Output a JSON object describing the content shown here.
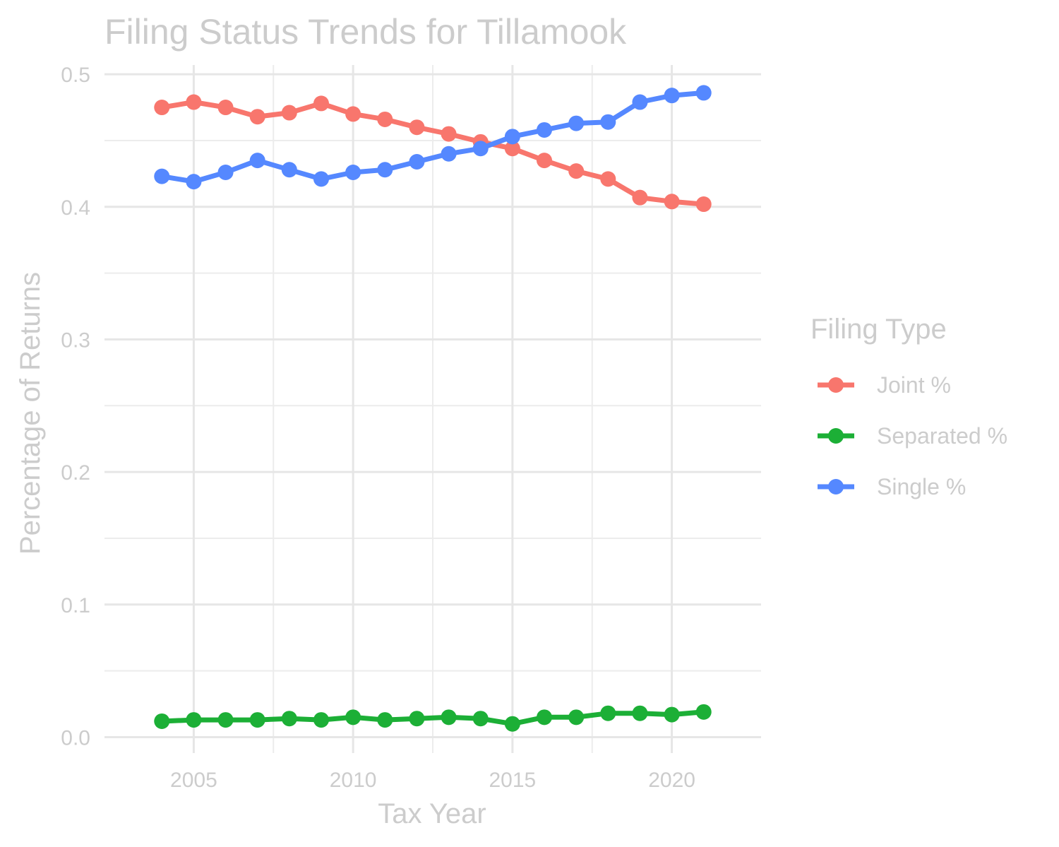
{
  "chart_data": {
    "type": "line",
    "title": "Filing Status Trends for Tillamook",
    "xlabel": "Tax Year",
    "ylabel": "Percentage of Returns",
    "x": [
      2004,
      2005,
      2006,
      2007,
      2008,
      2009,
      2010,
      2011,
      2012,
      2013,
      2014,
      2015,
      2016,
      2017,
      2018,
      2019,
      2020,
      2021
    ],
    "xlim": [
      2002.2,
      2022.8
    ],
    "ylim": [
      -0.012,
      0.507
    ],
    "x_ticks": [
      2005,
      2010,
      2015,
      2020
    ],
    "y_ticks": [
      0.0,
      0.1,
      0.2,
      0.3,
      0.4,
      0.5
    ],
    "x_tick_labels": [
      "2005",
      "2010",
      "2015",
      "2020"
    ],
    "y_tick_labels": [
      "0.0",
      "0.1",
      "0.2",
      "0.3",
      "0.4",
      "0.5"
    ],
    "grid": true,
    "legend": {
      "title": "Filing Type",
      "position": "right"
    },
    "series": [
      {
        "name": "Joint %",
        "color": "#F8766D",
        "values": [
          0.475,
          0.479,
          0.475,
          0.468,
          0.471,
          0.478,
          0.47,
          0.466,
          0.46,
          0.455,
          0.449,
          0.444,
          0.435,
          0.427,
          0.421,
          0.407,
          0.404,
          0.402
        ]
      },
      {
        "name": "Separated %",
        "color": "#1CAF36",
        "values": [
          0.012,
          0.013,
          0.013,
          0.013,
          0.014,
          0.013,
          0.015,
          0.013,
          0.014,
          0.015,
          0.014,
          0.01,
          0.015,
          0.015,
          0.018,
          0.018,
          0.017,
          0.019
        ]
      },
      {
        "name": "Single %",
        "color": "#5588FF",
        "values": [
          0.423,
          0.419,
          0.426,
          0.435,
          0.428,
          0.421,
          0.426,
          0.428,
          0.434,
          0.44,
          0.444,
          0.453,
          0.458,
          0.463,
          0.464,
          0.479,
          0.484,
          0.486
        ]
      }
    ]
  }
}
